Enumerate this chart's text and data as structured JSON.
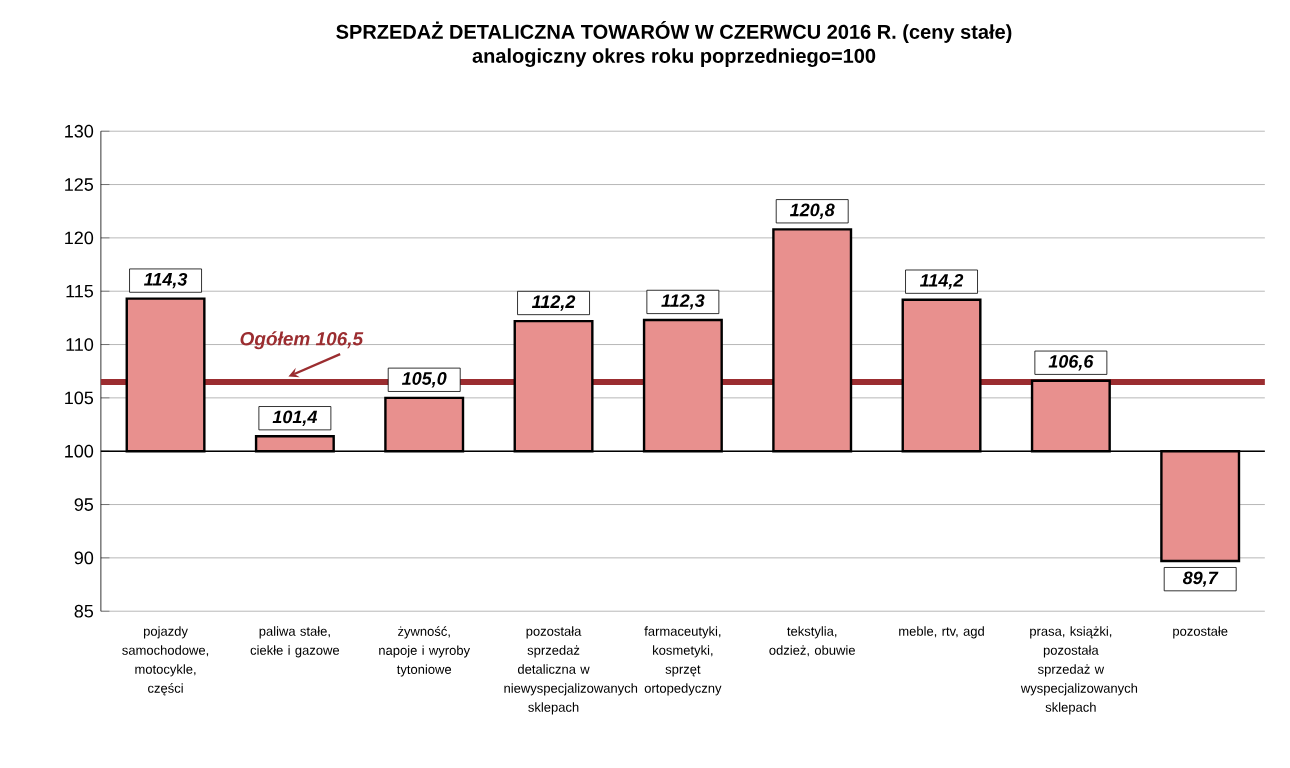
{
  "chart_data": {
    "type": "bar",
    "title": "SPRZEDAŻ DETALICZNA TOWARÓW W CZERWCU 2016 R. (ceny stałe)",
    "subtitle": "analogiczny okres roku poprzedniego=100",
    "categories": [
      "pojazdy samochodowe, motocykle, części",
      "paliwa stałe, ciekłe i gazowe",
      "żywność, napoje i wyroby tytoniowe",
      "pozostała sprzedaż detaliczna w niewyspecjalizowanych sklepach",
      "farmaceutyki, kosmetyki, sprzęt ortopedyczny",
      "tekstylia, odzież, obuwie",
      "meble, rtv, agd",
      "prasa, książki, pozostała sprzedaż w wyspecjalizowanych sklepach",
      "pozostałe"
    ],
    "base": [
      100,
      100,
      100,
      100,
      100,
      100,
      100,
      100,
      100
    ],
    "values": [
      14.3,
      1.4,
      5.0,
      12.2,
      12.3,
      20.8,
      14.2,
      6.6,
      -10.3
    ],
    "value_labels": [
      "114,3",
      "101,4",
      "105,0",
      "112,2",
      "112,3",
      "120,8",
      "114,2",
      "106,6",
      "89,7"
    ],
    "color": "#e8908e",
    "ylim": [
      85,
      130
    ],
    "yticks": [
      85,
      90,
      95,
      100,
      105,
      110,
      115,
      120,
      125,
      130
    ],
    "grid": "y",
    "ref_lines": [
      {
        "axis": "y",
        "value": 100,
        "color": "#000000"
      },
      {
        "axis": "y",
        "value": 106.5,
        "label": "Ogółem 106,5",
        "color": "#9b2d30"
      }
    ]
  }
}
